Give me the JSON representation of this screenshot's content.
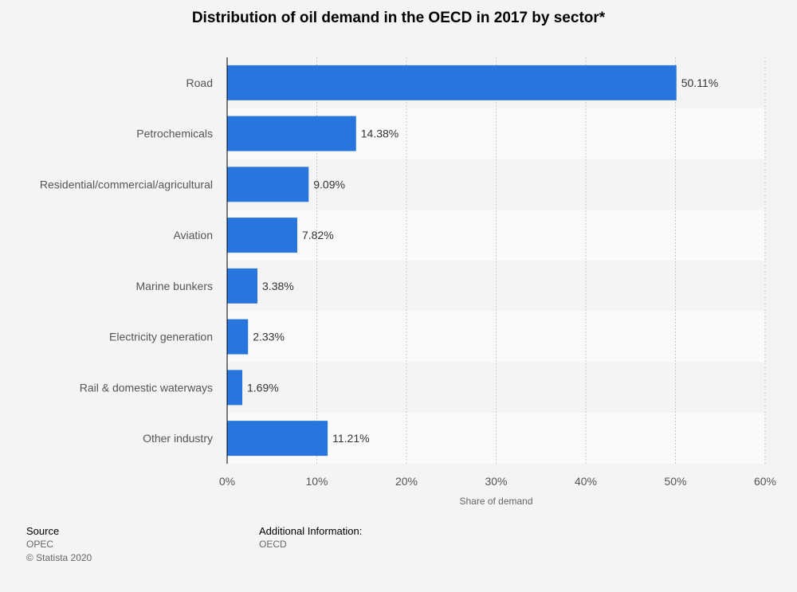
{
  "chart_data": {
    "type": "bar",
    "orientation": "horizontal",
    "title": "Distribution of oil demand in the OECD in 2017 by sector*",
    "xlabel": "Share of demand",
    "ylabel": "",
    "xlim": [
      0,
      60
    ],
    "xticks": [
      "0%",
      "10%",
      "20%",
      "30%",
      "40%",
      "50%",
      "60%"
    ],
    "grid": true,
    "categories": [
      "Road",
      "Petrochemicals",
      "Residential/commercial/agricultural",
      "Aviation",
      "Marine bunkers",
      "Electricity generation",
      "Rail & domestic waterways",
      "Other industry"
    ],
    "values": [
      50.11,
      14.38,
      9.09,
      7.82,
      3.38,
      2.33,
      1.69,
      11.21
    ],
    "value_labels": [
      "50.11%",
      "14.38%",
      "9.09%",
      "7.82%",
      "3.38%",
      "2.33%",
      "1.69%",
      "11.21%"
    ],
    "bar_color": "#2876dd"
  },
  "footer": {
    "source_heading": "Source",
    "source_name": "OPEC",
    "copyright": "© Statista 2020",
    "additional_heading": "Additional Information:",
    "additional_text": "OECD"
  }
}
